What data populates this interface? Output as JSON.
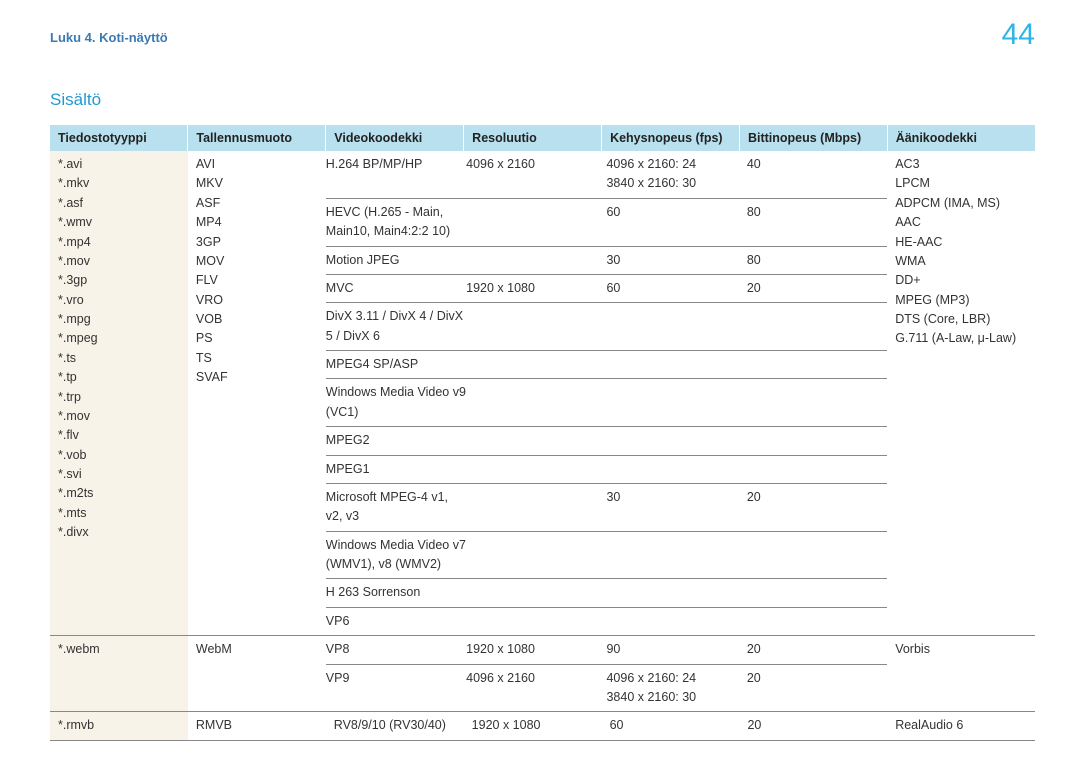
{
  "header": {
    "breadcrumb": "Luku 4. Koti-näyttö",
    "page_number": "44"
  },
  "section_title": "Sisältö",
  "columns": {
    "c1": "Tiedostotyyppi",
    "c2": "Tallennusmuoto",
    "c3": "Videokoodekki",
    "c4": "Resoluutio",
    "c5": "Kehysnopeus (fps)",
    "c6": "Bittinopeus (Mbps)",
    "c7": "Äänikoodekki"
  },
  "row1": {
    "filetypes": [
      "*.avi",
      "*.mkv",
      "*.asf",
      "*.wmv",
      "*.mp4",
      "*.mov",
      "*.3gp",
      "*.vro",
      "*.mpg",
      "*.mpeg",
      "*.ts",
      "*.tp",
      "*.trp",
      "*.mov",
      "*.flv",
      "*.vob",
      "*.svi",
      "*.m2ts",
      "*.mts",
      " *.divx"
    ],
    "containers": [
      "AVI",
      "MKV",
      "ASF",
      "MP4",
      "3GP",
      "MOV",
      "FLV",
      "VRO",
      "VOB",
      "PS",
      "TS",
      "SVAF"
    ],
    "audio": [
      "AC3",
      "LPCM",
      "ADPCM (IMA, MS)",
      "AAC",
      "HE-AAC",
      "WMA",
      "DD+",
      "MPEG (MP3)",
      "DTS (Core, LBR)",
      "G.711 (A-Law, μ-Law)"
    ],
    "video_rows": [
      {
        "codec": "H.264 BP/MP/HP",
        "res": "4096 x 2160",
        "fps": "4096 x 2160: 24\n3840 x 2160: 30",
        "bit": "40"
      },
      {
        "codec": "HEVC (H.265 - Main, Main10, Main4:2:2 10)",
        "res": "",
        "fps": "60",
        "bit": "80"
      },
      {
        "codec": "Motion JPEG",
        "res": "",
        "fps": "30",
        "bit": "80"
      },
      {
        "codec": "MVC",
        "res": "1920 x 1080",
        "fps": "60",
        "bit": "20"
      },
      {
        "codec": "DivX 3.11 / DivX 4 / DivX 5 / DivX 6",
        "res": "",
        "fps": "",
        "bit": ""
      },
      {
        "codec": "MPEG4 SP/ASP",
        "res": "",
        "fps": "",
        "bit": ""
      },
      {
        "codec": "Windows Media Video v9 (VC1)",
        "res": "",
        "fps": "",
        "bit": ""
      },
      {
        "codec": "MPEG2",
        "res": "",
        "fps": "",
        "bit": ""
      },
      {
        "codec": "MPEG1",
        "res": "",
        "fps": "",
        "bit": ""
      },
      {
        "codec": "Microsoft MPEG-4 v1, v2, v3",
        "res": "",
        "fps": "30",
        "bit": "20"
      },
      {
        "codec": "Windows Media Video v7 (WMV1), v8 (WMV2)",
        "res": "",
        "fps": "",
        "bit": ""
      },
      {
        "codec": "H 263 Sorrenson",
        "res": "",
        "fps": "",
        "bit": ""
      },
      {
        "codec": "VP6",
        "res": "",
        "fps": "",
        "bit": ""
      }
    ]
  },
  "row2": {
    "filetype": "*.webm",
    "container": "WebM",
    "audio": "Vorbis",
    "video_rows": [
      {
        "codec": "VP8",
        "res": "1920 x 1080",
        "fps": "90",
        "bit": "20"
      },
      {
        "codec": "VP9",
        "res": "4096 x 2160",
        "fps": "4096 x 2160: 24\n3840 x 2160: 30",
        "bit": "20"
      }
    ]
  },
  "row3": {
    "filetype": "*.rmvb",
    "container": "RMVB",
    "codec": "RV8/9/10 (RV30/40)",
    "res": "1920 x 1080",
    "fps": "60",
    "bit": "20",
    "audio": "RealAudio 6"
  }
}
